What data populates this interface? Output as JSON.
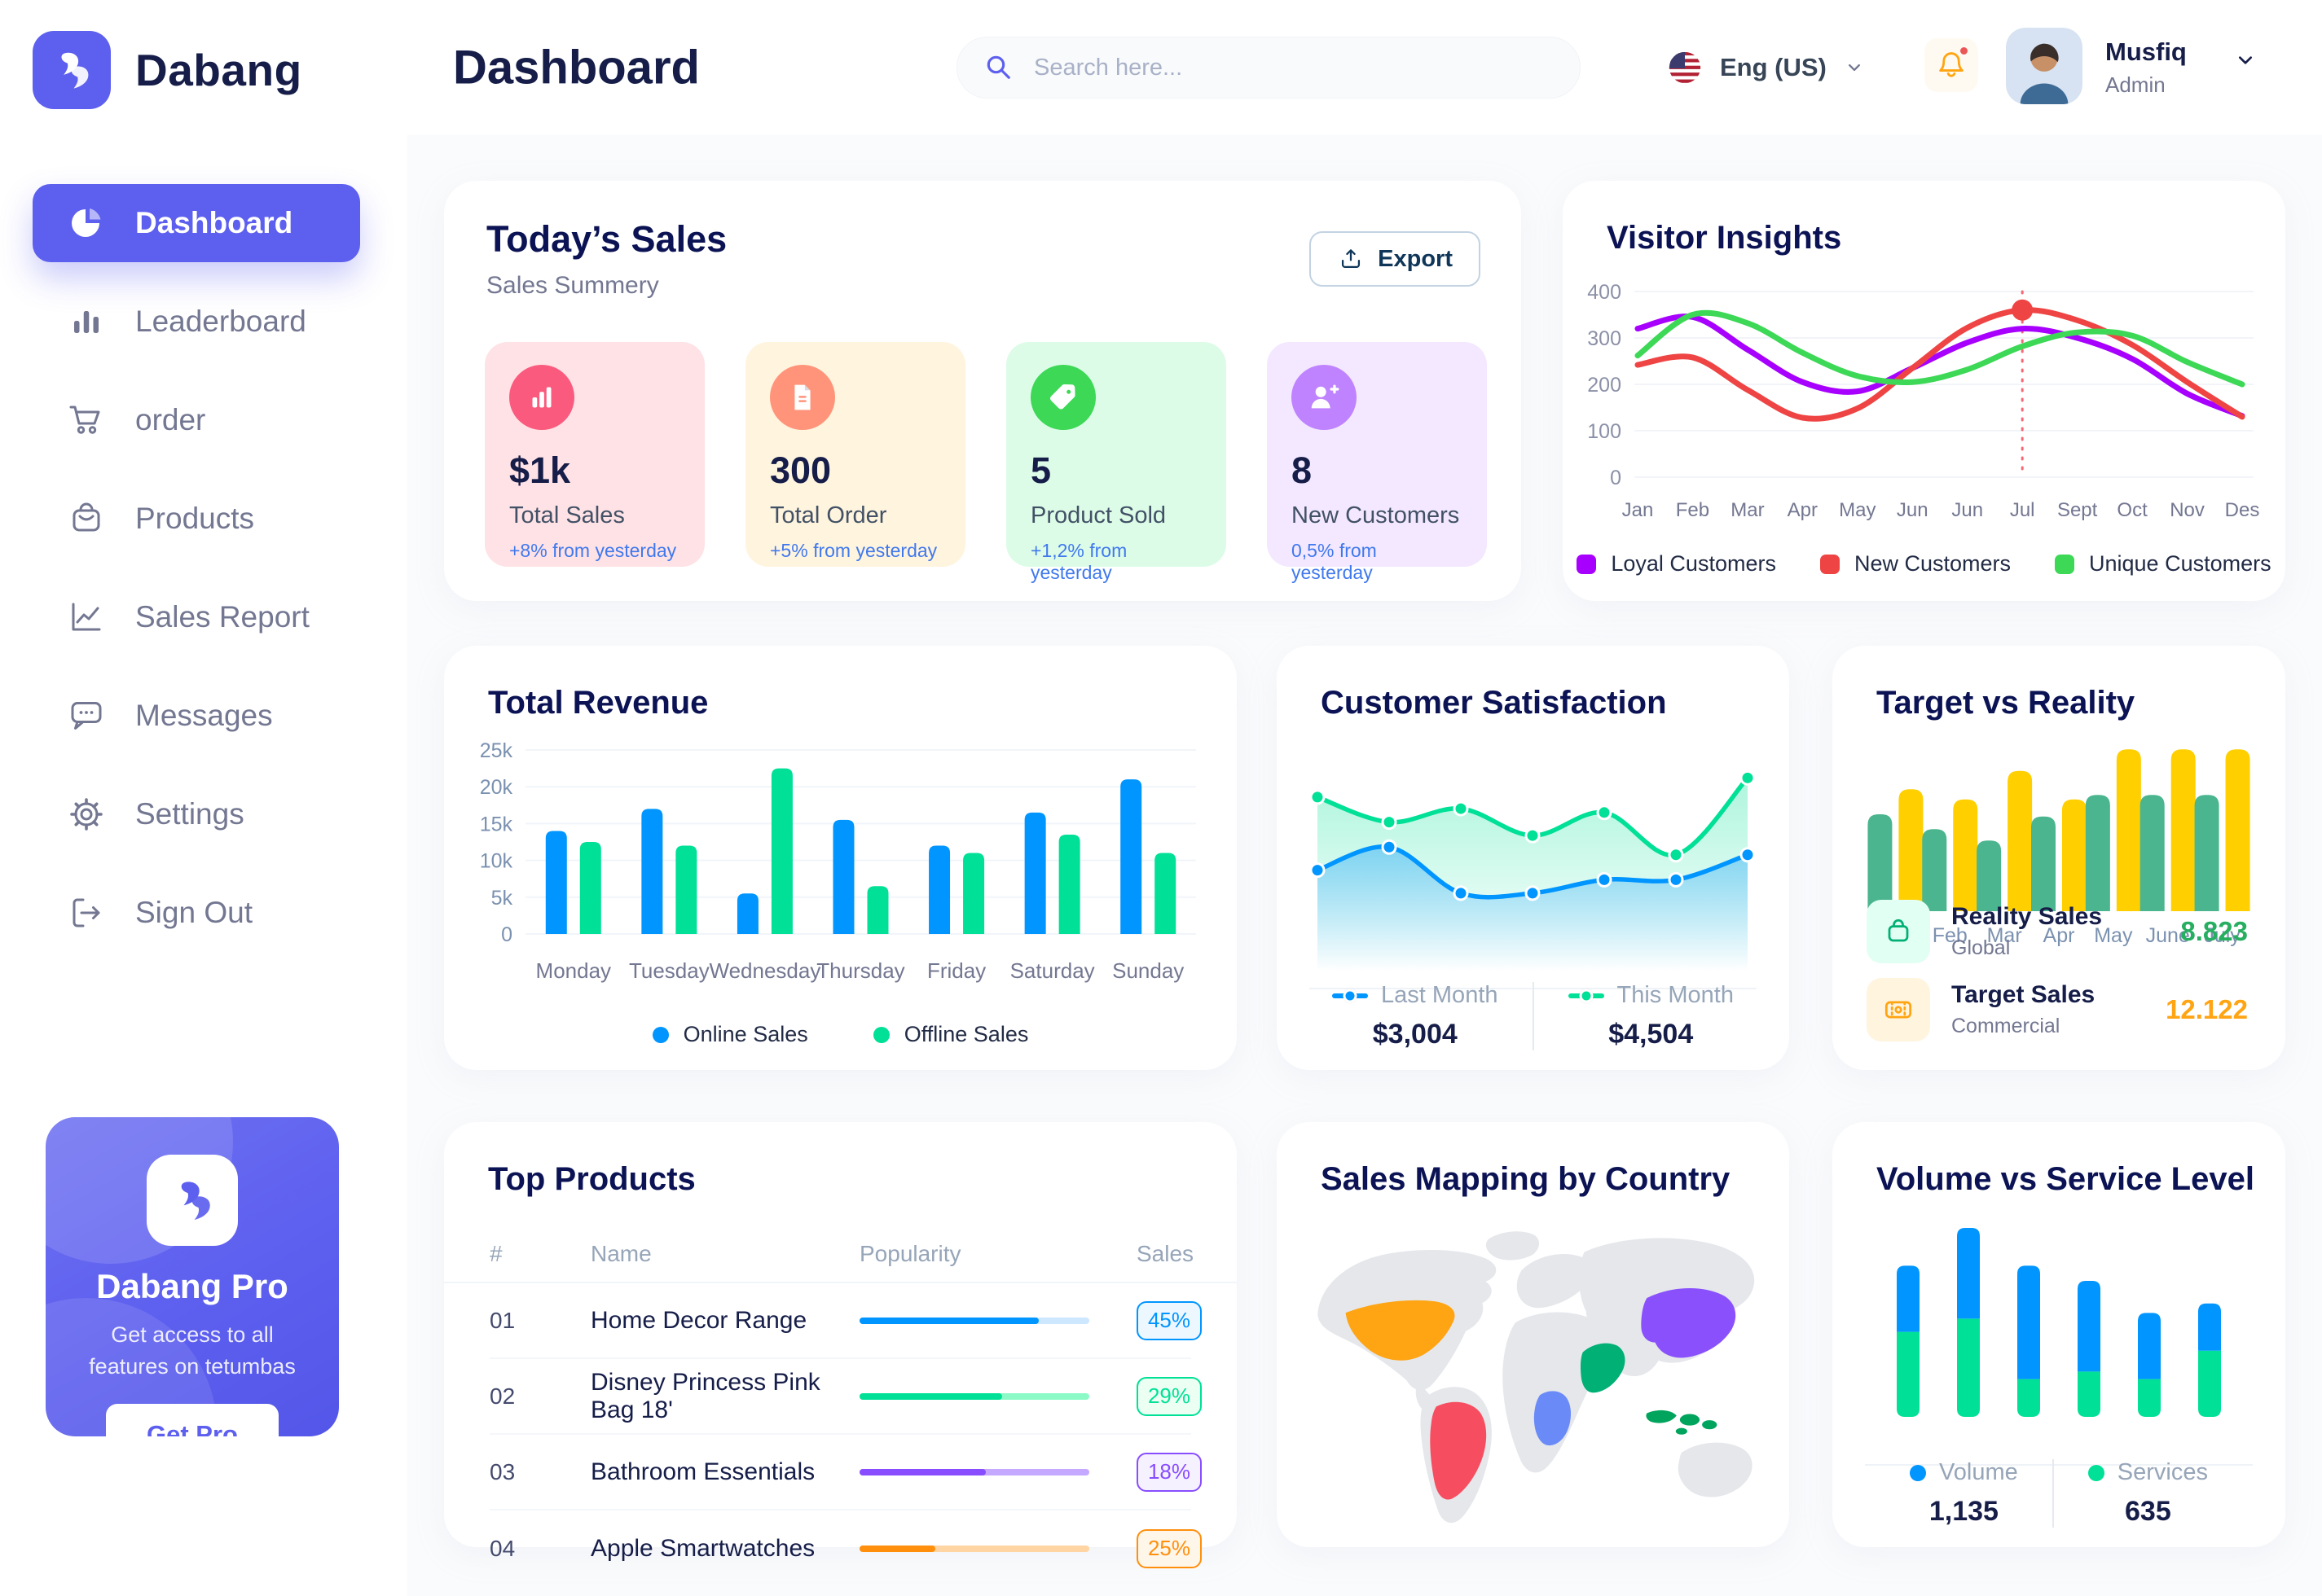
{
  "app": {
    "brand": "Dabang",
    "accent_color": "#5D5FEF"
  },
  "sidebar": {
    "items": [
      {
        "label": "Dashboard",
        "icon": "pie-chart-icon",
        "active": true
      },
      {
        "label": "Leaderboard",
        "icon": "bar-chart-icon",
        "active": false
      },
      {
        "label": "order",
        "icon": "cart-icon",
        "active": false
      },
      {
        "label": "Products",
        "icon": "bag-icon",
        "active": false
      },
      {
        "label": "Sales Report",
        "icon": "line-chart-icon",
        "active": false
      },
      {
        "label": "Messages",
        "icon": "message-icon",
        "active": false
      },
      {
        "label": "Settings",
        "icon": "gear-icon",
        "active": false
      },
      {
        "label": "Sign Out",
        "icon": "sign-out-icon",
        "active": false
      }
    ],
    "pro": {
      "title": "Dabang Pro",
      "description": "Get access to all features on tetumbas",
      "button_label": "Get Pro"
    }
  },
  "header": {
    "title": "Dashboard",
    "search_placeholder": "Search here...",
    "language": "Eng (US)",
    "notifications_badge": true,
    "user": {
      "name": "Musfiq",
      "role": "Admin"
    }
  },
  "today_sales": {
    "title": "Today’s Sales",
    "subtitle": "Sales Summery",
    "export_label": "Export",
    "stats": [
      {
        "value": "$1k",
        "label": "Total Sales",
        "delta": "+8% from yesterday",
        "bg": "#FFE2E5",
        "icon_bg": "#FA5A7D",
        "icon": "stat-chart-icon"
      },
      {
        "value": "300",
        "label": "Total Order",
        "delta": "+5% from yesterday",
        "bg": "#FFF4DE",
        "icon_bg": "#FF947A",
        "icon": "stat-receipt-icon"
      },
      {
        "value": "5",
        "label": "Product Sold",
        "delta": "+1,2% from yesterday",
        "bg": "#DCFCE7",
        "icon_bg": "#3CD856",
        "icon": "stat-tag-icon"
      },
      {
        "value": "8",
        "label": "New Customers",
        "delta": "0,5% from yesterday",
        "bg": "#F3E8FF",
        "icon_bg": "#BF83FF",
        "icon": "stat-user-plus-icon"
      }
    ]
  },
  "chart_data": [
    {
      "id": "visitor_insights",
      "type": "line",
      "title": "Visitor Insights",
      "x": [
        "Jan",
        "Feb",
        "Mar",
        "Apr",
        "May",
        "Jun",
        "Jun",
        "Jul",
        "Sept",
        "Oct",
        "Nov",
        "Des"
      ],
      "ylim": [
        0,
        400
      ],
      "yticks": [
        0,
        100,
        200,
        300,
        400
      ],
      "grid": true,
      "legend_position": "bottom",
      "series": [
        {
          "name": "Loyal Customers",
          "color": "#A700FF",
          "values": [
            320,
            345,
            275,
            205,
            185,
            235,
            290,
            320,
            300,
            255,
            180,
            132
          ]
        },
        {
          "name": "New Customers",
          "color": "#EF4444",
          "values": [
            242,
            258,
            188,
            128,
            148,
            235,
            322,
            360,
            338,
            285,
            205,
            130
          ]
        },
        {
          "name": "Unique Customers",
          "color": "#3CD856",
          "values": [
            262,
            350,
            332,
            268,
            218,
            205,
            232,
            282,
            312,
            305,
            248,
            200
          ]
        }
      ],
      "annotation": {
        "x_index": 7,
        "x_label": "Jul",
        "series": "New Customers",
        "value": 360,
        "line_color": "#F64E60",
        "marker_color": "#EF4444"
      }
    },
    {
      "id": "total_revenue",
      "type": "bar",
      "title": "Total Revenue",
      "categories": [
        "Monday",
        "Tuesday",
        "Wednesday",
        "Thursday",
        "Friday",
        "Saturday",
        "Sunday"
      ],
      "ylim": [
        0,
        25000
      ],
      "yticks": [
        0,
        5000,
        10000,
        15000,
        20000,
        25000
      ],
      "yticks_labels": [
        "0",
        "5k",
        "10k",
        "15k",
        "20k",
        "25k"
      ],
      "grid": true,
      "legend_position": "bottom",
      "series": [
        {
          "name": "Online Sales",
          "color": "#0095FF",
          "values": [
            14000,
            17000,
            5500,
            15500,
            12000,
            16500,
            21000
          ]
        },
        {
          "name": "Offline Sales",
          "color": "#00E096",
          "values": [
            12500,
            12000,
            22500,
            6500,
            11000,
            13500,
            11000
          ]
        }
      ]
    },
    {
      "id": "customer_satisfaction",
      "type": "area",
      "title": "Customer Satisfaction",
      "x": [
        1,
        2,
        3,
        4,
        5,
        6,
        7
      ],
      "ylim": [
        0,
        100
      ],
      "grid": false,
      "legend_position": "bottom",
      "series": [
        {
          "name": "Last Month",
          "color": "#0095FF",
          "total": "$3,004",
          "values": [
            40,
            52,
            28,
            28,
            35,
            35,
            48
          ]
        },
        {
          "name": "This Month",
          "color": "#00E096",
          "total": "$4,504",
          "values": [
            78,
            65,
            72,
            58,
            70,
            48,
            88
          ]
        }
      ]
    },
    {
      "id": "target_vs_reality",
      "type": "bar",
      "title": "Target vs Reality",
      "categories": [
        "Jan",
        "Feb",
        "Mar",
        "Apr",
        "May",
        "June",
        "July"
      ],
      "ylim": [
        0,
        15
      ],
      "grid": false,
      "legend_position": "bottom-list",
      "series": [
        {
          "name": "Reality Sales",
          "color": "#4AB58E",
          "values": [
            8.5,
            7.2,
            6.2,
            8.3,
            10.2,
            10.2,
            10.2
          ]
        },
        {
          "name": "Target Sales",
          "color": "#FFCF00",
          "values": [
            10.7,
            9.8,
            12.3,
            9.8,
            14.2,
            14.2,
            14.2
          ]
        }
      ],
      "legend_items": [
        {
          "name": "Reality Sales",
          "sub": "Global",
          "value": "8.823",
          "value_color": "#27AE60",
          "icon": "legend-bag-icon",
          "icon_bg": "#E2FFF3",
          "icon_color": "#00B074"
        },
        {
          "name": "Target Sales",
          "sub": "Commercial",
          "value": "12.122",
          "value_color": "#FFA412",
          "icon": "legend-ticket-icon",
          "icon_bg": "#FFF4DE",
          "icon_color": "#FFA412"
        }
      ]
    },
    {
      "id": "volume_service",
      "type": "stacked-bar",
      "title": "Volume vs Service Level",
      "categories": [
        "1",
        "2",
        "3",
        "4",
        "5",
        "6"
      ],
      "ylim": [
        0,
        100
      ],
      "grid": false,
      "legend_position": "bottom",
      "series": [
        {
          "name": "Volume",
          "color": "#0095FF",
          "total": "1,135",
          "values": [
            35,
            48,
            60,
            48,
            35,
            25
          ]
        },
        {
          "name": "Services",
          "color": "#00E096",
          "total": "635",
          "values": [
            45,
            52,
            20,
            24,
            20,
            35
          ]
        }
      ]
    }
  ],
  "top_products": {
    "title": "Top Products",
    "columns": [
      "#",
      "Name",
      "Popularity",
      "Sales"
    ],
    "rows": [
      {
        "id": "01",
        "name": "Home Decor Range",
        "popularity": 78,
        "sales": "45%",
        "bar_color": "#0095FF",
        "track_color": "#CDE7FF",
        "badge_bg": "#EDF7FF"
      },
      {
        "id": "02",
        "name": "Disney Princess Pink Bag 18'",
        "popularity": 62,
        "sales": "29%",
        "bar_color": "#00E096",
        "track_color": "#8CFAC7",
        "badge_bg": "#EBFFF3"
      },
      {
        "id": "03",
        "name": "Bathroom Essentials",
        "popularity": 55,
        "sales": "18%",
        "bar_color": "#884DFF",
        "track_color": "#C5A8FF",
        "badge_bg": "#F6F1FF"
      },
      {
        "id": "04",
        "name": "Apple Smartwatches",
        "popularity": 33,
        "sales": "25%",
        "bar_color": "#FF8F0D",
        "track_color": "#FFD5A4",
        "badge_bg": "#FFF6EA"
      }
    ]
  },
  "sales_mapping": {
    "title": "Sales Mapping by Country",
    "countries": [
      {
        "id": "usa",
        "name": "United States",
        "color": "#FFA412"
      },
      {
        "id": "brazil",
        "name": "Brazil",
        "color": "#F64E60"
      },
      {
        "id": "china",
        "name": "China",
        "color": "#8950FC"
      },
      {
        "id": "saudi-arabia",
        "name": "Saudi Arabia",
        "color": "#00B074"
      },
      {
        "id": "dr-congo",
        "name": "DR Congo",
        "color": "#6A8BF7"
      },
      {
        "id": "indonesia",
        "name": "Indonesia",
        "color": "#00A45D"
      }
    ]
  }
}
